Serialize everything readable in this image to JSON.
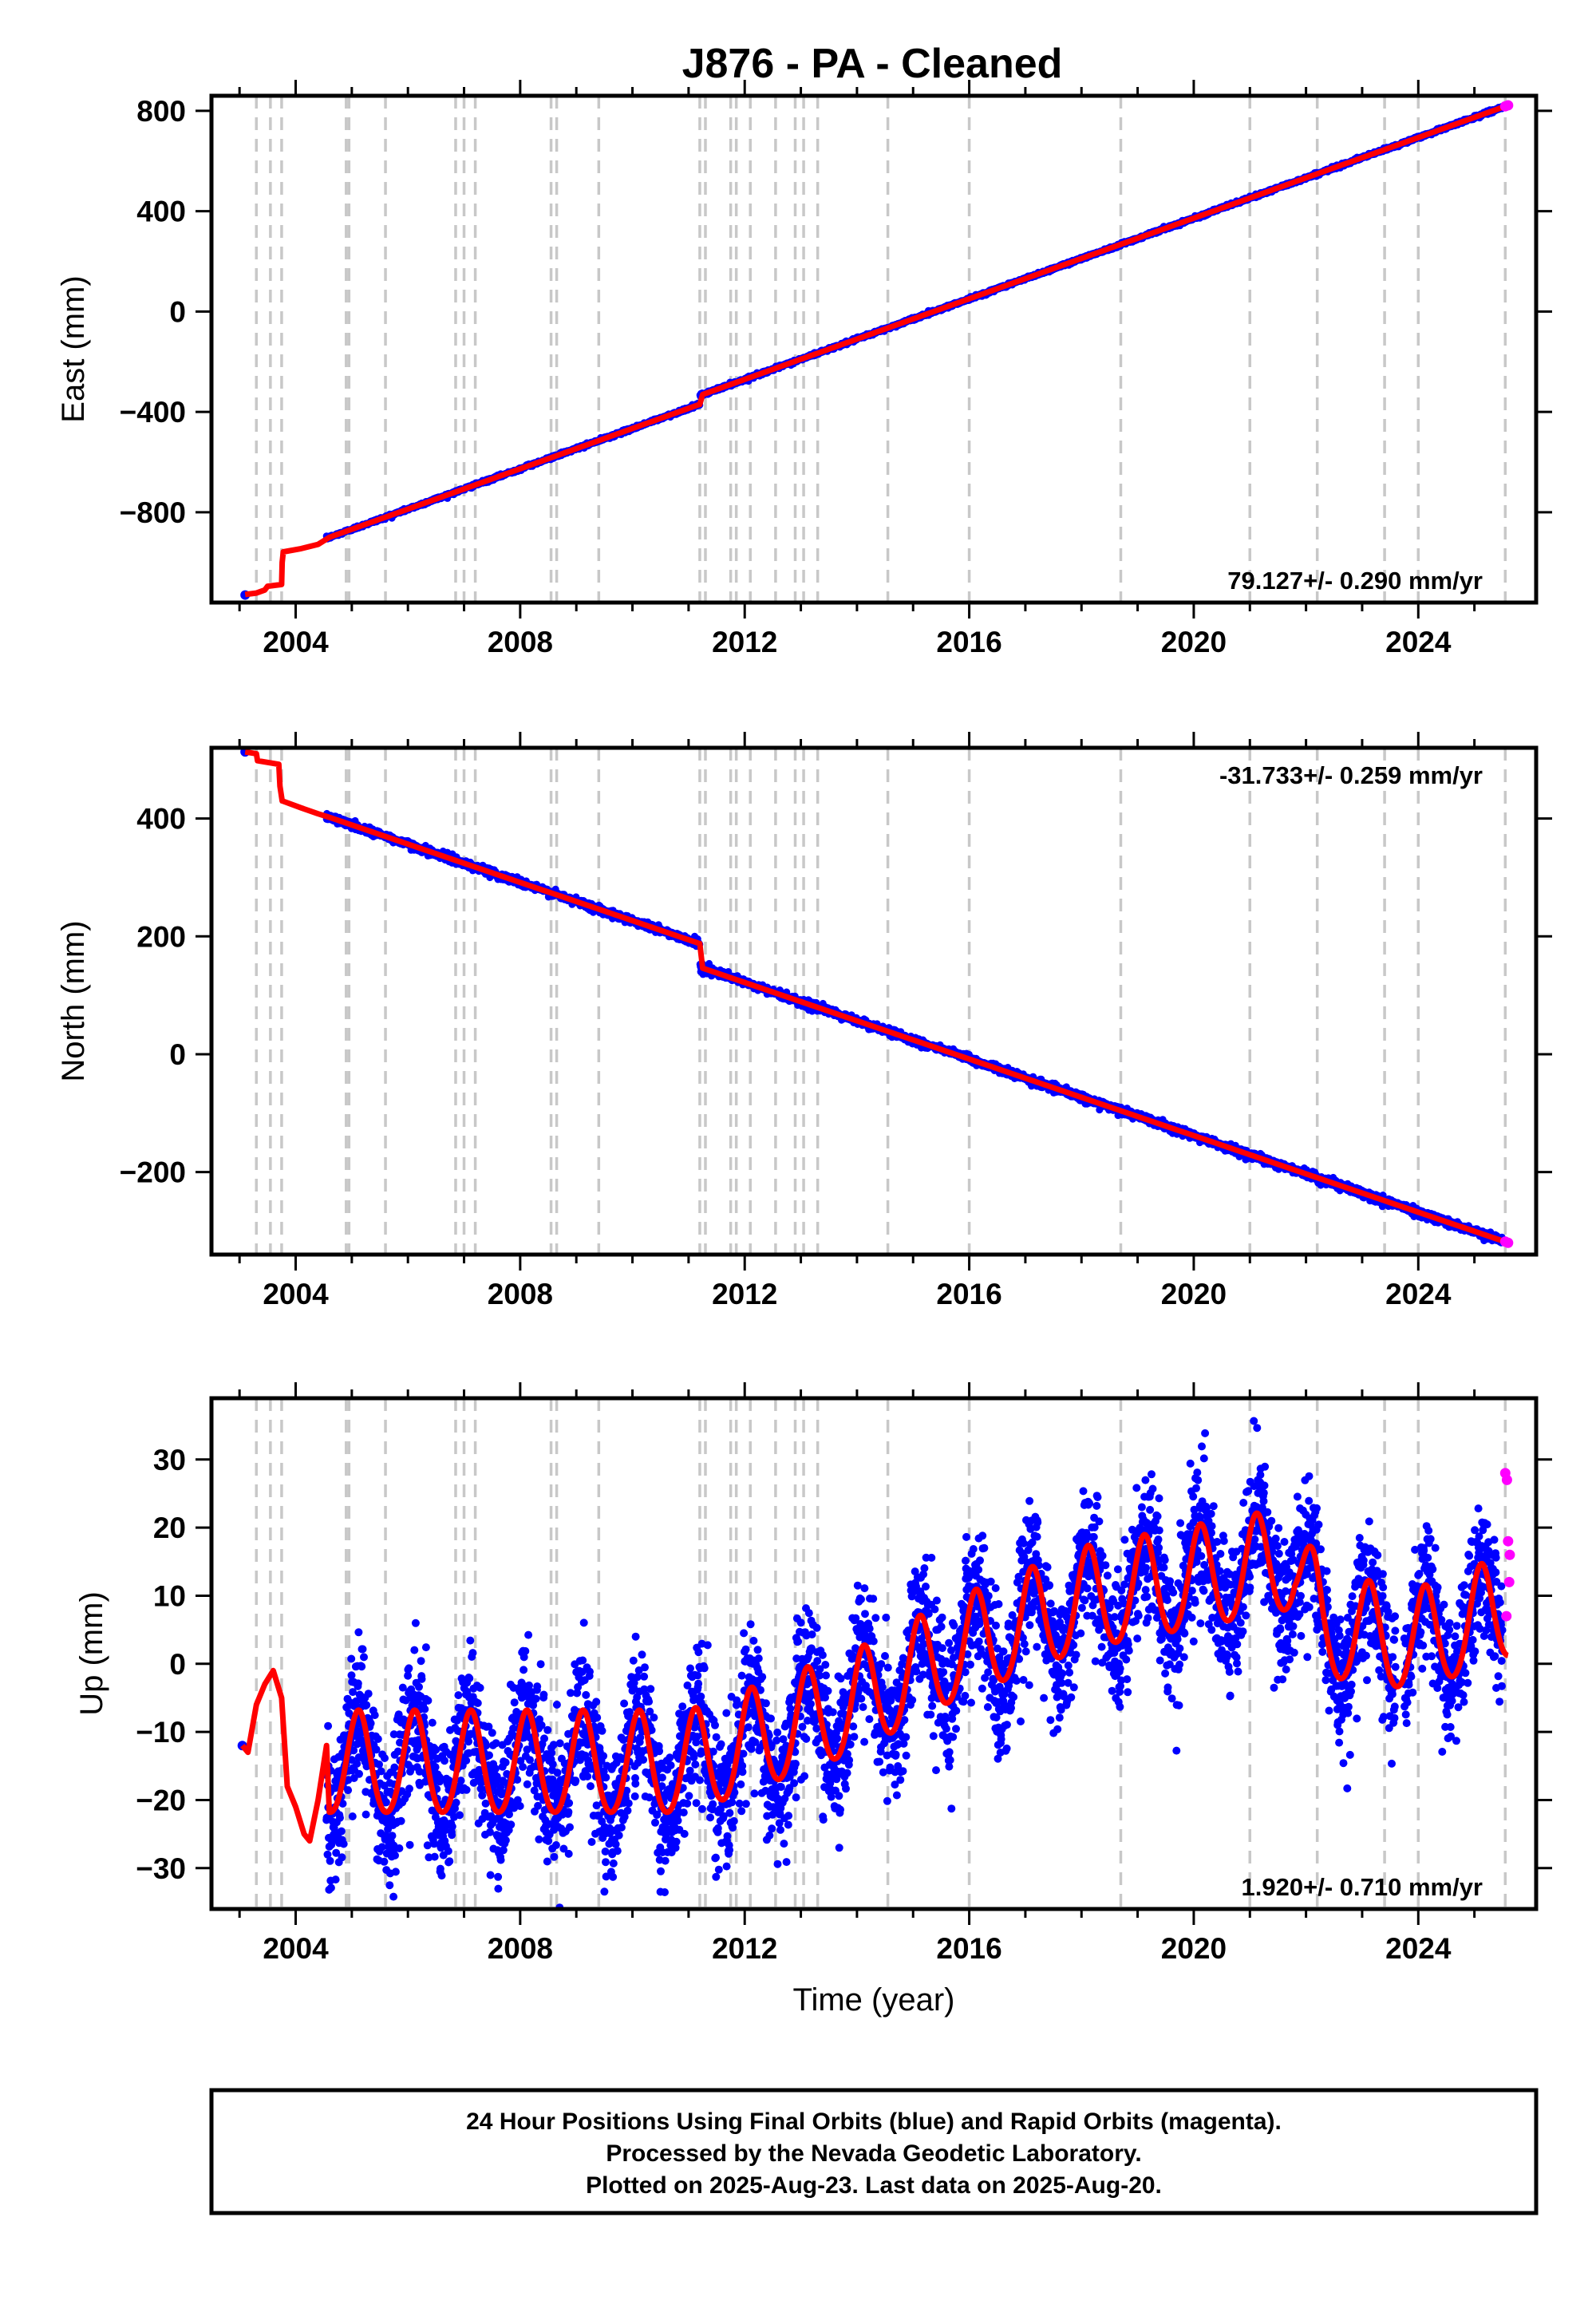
{
  "title": "J876  - PA - Cleaned",
  "chart_data": [
    {
      "type": "scatter",
      "component": "east",
      "ylabel": "East (mm)",
      "xlabel": "",
      "xlim": [
        2002.5,
        2026.1
      ],
      "ylim": [
        -1160,
        860
      ],
      "xticks": [
        2004,
        2008,
        2012,
        2016,
        2020,
        2024
      ],
      "yticks": [
        -800,
        -400,
        0,
        400,
        800
      ],
      "rate_text": "79.127+/- 0.290 mm/yr",
      "rate_position": "bottom-right",
      "grid": false,
      "trend_start": [
        2004.6,
        -900
      ],
      "trend_end": [
        2025.6,
        822
      ],
      "offsets": [
        [
          2011.2,
          35
        ]
      ],
      "early_points": [
        [
          2003.1,
          -1130
        ]
      ],
      "model_early": [
        [
          2003.1,
          -1128
        ],
        [
          2003.3,
          -1122
        ],
        [
          2003.45,
          -1110
        ],
        [
          2003.5,
          -1095
        ],
        [
          2003.75,
          -1088
        ],
        [
          2003.76,
          -1000
        ],
        [
          2003.78,
          -958
        ],
        [
          2004.1,
          -945
        ],
        [
          2004.4,
          -928
        ],
        [
          2004.6,
          -900
        ]
      ],
      "rapid_points": [
        [
          2025.55,
          818
        ],
        [
          2025.6,
          822
        ]
      ]
    },
    {
      "type": "scatter",
      "component": "north",
      "ylabel": "North (mm)",
      "xlabel": "",
      "xlim": [
        2002.5,
        2026.1
      ],
      "ylim": [
        -340,
        520
      ],
      "xticks": [
        2004,
        2008,
        2012,
        2016,
        2020,
        2024
      ],
      "yticks": [
        -200,
        0,
        200,
        400
      ],
      "rate_text": "-31.733+/- 0.259 mm/yr",
      "rate_position": "top-right",
      "grid": false,
      "trend_start": [
        2004.6,
        402
      ],
      "trend_end": [
        2025.6,
        -320
      ],
      "offsets": [
        [
          2011.2,
          -40
        ]
      ],
      "early_points": [
        [
          2003.1,
          513
        ]
      ],
      "model_early": [
        [
          2003.1,
          513
        ],
        [
          2003.3,
          510
        ],
        [
          2003.32,
          498
        ],
        [
          2003.7,
          492
        ],
        [
          2003.72,
          455
        ],
        [
          2003.76,
          430
        ],
        [
          2004.1,
          418
        ],
        [
          2004.4,
          408
        ],
        [
          2004.6,
          402
        ]
      ],
      "rapid_points": [
        [
          2025.55,
          -318
        ],
        [
          2025.6,
          -320
        ]
      ]
    },
    {
      "type": "scatter",
      "component": "up",
      "ylabel": "Up (mm)",
      "xlabel": "Time (year)",
      "xlim": [
        2002.5,
        2026.1
      ],
      "ylim": [
        -36,
        39
      ],
      "xticks": [
        2004,
        2008,
        2012,
        2016,
        2020,
        2024
      ],
      "yticks": [
        -30,
        -20,
        -10,
        0,
        10,
        20,
        30
      ],
      "rate_text": "1.920+/- 0.710 mm/yr",
      "rate_position": "bottom-right",
      "grid": false,
      "baseline": [
        [
          2004.5,
          -15
        ],
        [
          2011.0,
          -15
        ],
        [
          2012.0,
          -12
        ],
        [
          2014.0,
          -6
        ],
        [
          2015.6,
          1
        ],
        [
          2018.0,
          9
        ],
        [
          2021.8,
          15
        ],
        [
          2022.3,
          5
        ],
        [
          2024.0,
          3
        ],
        [
          2025.6,
          8
        ]
      ],
      "seasonal_amplitude": 7.5,
      "noise_sd": 5,
      "early_points": [
        [
          2003.05,
          -12
        ]
      ],
      "model_early": [
        [
          2003.05,
          -12
        ],
        [
          2003.15,
          -13
        ],
        [
          2003.3,
          -6
        ],
        [
          2003.45,
          -3
        ],
        [
          2003.6,
          -1
        ],
        [
          2003.75,
          -5
        ],
        [
          2003.85,
          -18
        ],
        [
          2004.0,
          -21
        ],
        [
          2004.15,
          -25
        ],
        [
          2004.25,
          -26
        ],
        [
          2004.4,
          -20
        ],
        [
          2004.55,
          -12
        ]
      ],
      "rapid_points": [
        [
          2025.55,
          28
        ],
        [
          2025.58,
          27
        ],
        [
          2025.6,
          18
        ],
        [
          2025.62,
          12
        ],
        [
          2025.57,
          7
        ],
        [
          2025.63,
          16
        ]
      ]
    }
  ],
  "event_lines": [
    2003.3,
    2003.55,
    2003.75,
    2004.9,
    2004.95,
    2005.6,
    2006.85,
    2007.0,
    2007.2,
    2008.55,
    2008.65,
    2009.4,
    2011.2,
    2011.3,
    2011.75,
    2011.85,
    2012.1,
    2012.55,
    2012.9,
    2013.05,
    2013.3,
    2014.55,
    2016.0,
    2018.7,
    2021.0,
    2022.2,
    2023.4,
    2024.0,
    2025.55
  ],
  "colors": {
    "final_orbit_points": "#0000ff",
    "rapid_orbit_points": "#ff00ff",
    "model_line": "#ff0000",
    "event_lines": "#c8c8c8",
    "frame": "#000000"
  },
  "footer": {
    "line1": "24 Hour Positions Using Final Orbits (blue) and Rapid Orbits (magenta).",
    "line2": "Processed by the Nevada Geodetic Laboratory.",
    "line3": "Plotted on 2025-Aug-23. Last data on 2025-Aug-20."
  }
}
